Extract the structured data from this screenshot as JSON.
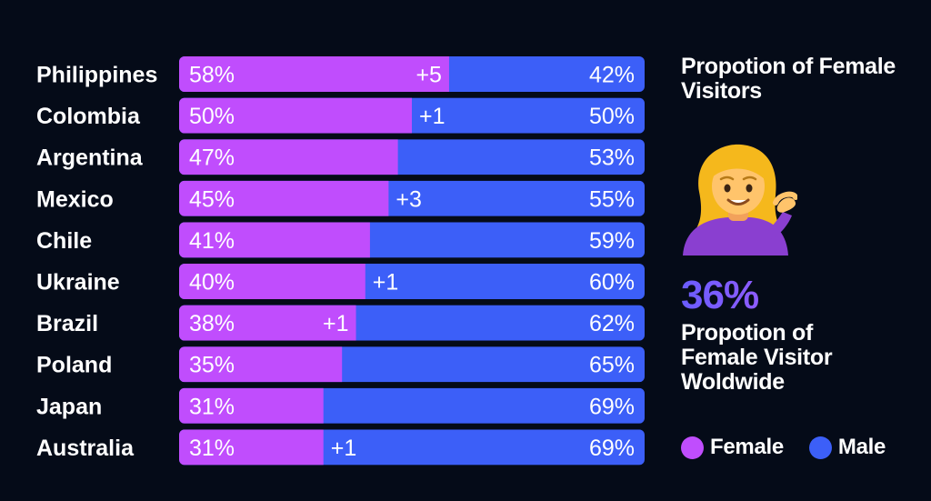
{
  "colors": {
    "female": "#c04dfd",
    "male": "#3c5ff8",
    "background": "#050b18",
    "text": "#ffffff"
  },
  "chart_data": {
    "type": "bar",
    "stacked": true,
    "orientation": "horizontal",
    "categories": [
      "Philippines",
      "Colombia",
      "Argentina",
      "Mexico",
      "Chile",
      "Ukraine",
      "Brazil",
      "Poland",
      "Japan",
      "Australia"
    ],
    "series": [
      {
        "name": "Female",
        "values": [
          58,
          50,
          47,
          45,
          41,
          40,
          38,
          35,
          31,
          31
        ]
      },
      {
        "name": "Male",
        "values": [
          42,
          50,
          53,
          55,
          59,
          60,
          62,
          65,
          69,
          69
        ]
      }
    ],
    "female_labels": [
      "58%",
      "50%",
      "47%",
      "45%",
      "41%",
      "40%",
      "38%",
      "35%",
      "31%",
      "31%"
    ],
    "male_labels": [
      "42%",
      "50%",
      "53%",
      "55%",
      "59%",
      "60%",
      "62%",
      "65%",
      "69%",
      "69%"
    ],
    "change_labels": [
      "+5",
      "+1",
      "",
      "+3",
      "",
      "+1",
      "+1",
      "",
      "",
      "+1"
    ],
    "xlim": [
      0,
      100
    ],
    "legend": "bottom-right"
  },
  "side": {
    "title": "Propotion of Female Visitors",
    "emoji": "woman-tipping-hand",
    "big_value": "36%",
    "big_label": "Propotion of Female Visitor Woldwide"
  },
  "legend": [
    {
      "label": "Female",
      "color": "#c04dfd"
    },
    {
      "label": "Male",
      "color": "#3c5ff8"
    }
  ]
}
